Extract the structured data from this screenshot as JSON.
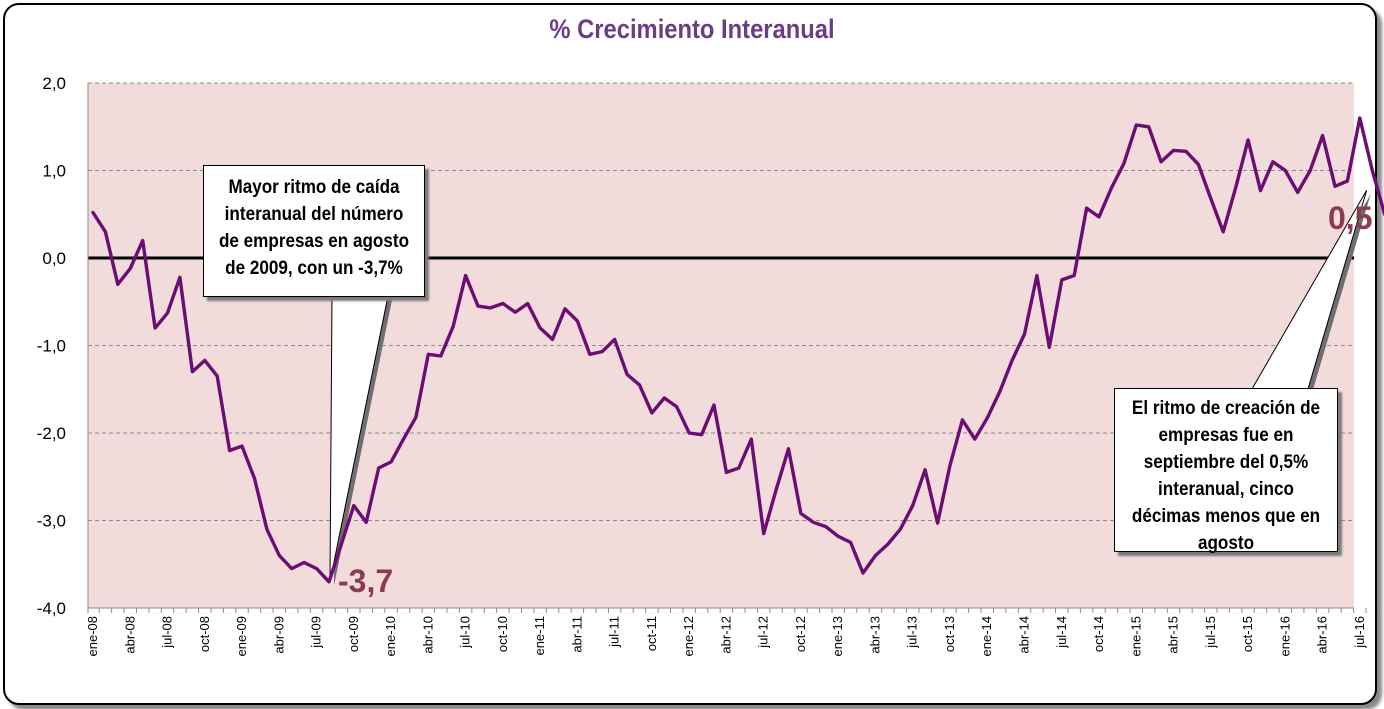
{
  "chart_data": {
    "type": "line",
    "title": "% Crecimiento Interanual",
    "xlabel": "",
    "ylabel": "",
    "ylim": [
      -4,
      2
    ],
    "yticks": [
      "2,0",
      "1,0",
      "0,0",
      "-1,0",
      "-2,0",
      "-3,0",
      "-4,0"
    ],
    "ytick_values": [
      2,
      1,
      0,
      -1,
      -2,
      -3,
      -4
    ],
    "x_tick_labels": [
      "ene-08",
      "abr-08",
      "jul-08",
      "oct-08",
      "ene-09",
      "abr-09",
      "jul-09",
      "oct-09",
      "ene-10",
      "abr-10",
      "jul-10",
      "oct-10",
      "ene-11",
      "abr-11",
      "jul-11",
      "oct-11",
      "ene-12",
      "abr-12",
      "jul-12",
      "oct-12",
      "ene-13",
      "abr-13",
      "jul-13",
      "oct-13",
      "ene-14",
      "abr-14",
      "jul-14",
      "oct-14",
      "ene-15",
      "abr-15",
      "jul-15",
      "oct-15",
      "ene-16",
      "abr-16",
      "jul-16"
    ],
    "x_start": "2008-01",
    "x_end": "2016-09",
    "grid": true,
    "legend": "none",
    "series": [
      {
        "color": "#6b0d73",
        "values": [
          0.52,
          0.3,
          -0.3,
          -0.12,
          0.2,
          -0.8,
          -0.63,
          -0.22,
          -1.3,
          -1.17,
          -1.35,
          -2.2,
          -2.15,
          -2.52,
          -3.1,
          -3.4,
          -3.55,
          -3.48,
          -3.55,
          -3.7,
          -3.27,
          -2.83,
          -3.02,
          -2.4,
          -2.33,
          -2.07,
          -1.82,
          -1.1,
          -1.12,
          -0.78,
          -0.2,
          -0.55,
          -0.57,
          -0.52,
          -0.62,
          -0.52,
          -0.8,
          -0.93,
          -0.58,
          -0.72,
          -1.1,
          -1.07,
          -0.93,
          -1.33,
          -1.45,
          -1.77,
          -1.6,
          -1.7,
          -2.0,
          -2.02,
          -1.68,
          -2.45,
          -2.4,
          -2.07,
          -3.15,
          -2.65,
          -2.18,
          -2.92,
          -3.02,
          -3.07,
          -3.18,
          -3.25,
          -3.6,
          -3.4,
          -3.27,
          -3.1,
          -2.83,
          -2.42,
          -3.03,
          -2.37,
          -1.85,
          -2.07,
          -1.83,
          -1.53,
          -1.17,
          -0.87,
          -0.2,
          -1.02,
          -0.25,
          -0.2,
          0.57,
          0.47,
          0.8,
          1.08,
          1.52,
          1.5,
          1.1,
          1.23,
          1.22,
          1.07,
          0.68,
          0.3,
          0.8,
          1.35,
          0.77,
          1.1,
          1.0,
          0.75,
          1.0,
          1.4,
          0.82,
          0.88,
          1.6,
          1.0,
          0.5
        ]
      }
    ],
    "annotations": {
      "min_label": "-3,7",
      "last_label": "0,5",
      "callout_left": [
        "Mayor ritmo de caída",
        "interanual del número",
        "de empresas  en agosto",
        "de 2009,  con un -3,7%"
      ],
      "callout_right": [
        "El ritmo de creación de",
        "empresas fue en",
        "septiembre del 0,5%",
        "interanual, cinco",
        "décimas menos que en",
        "agosto"
      ]
    },
    "colors": {
      "plot_background": "#f2dcdb",
      "line": "#6b0d73",
      "zero_line": "#000000",
      "title": "#6a3d85",
      "highlight_label": "#8e3a4e"
    }
  }
}
